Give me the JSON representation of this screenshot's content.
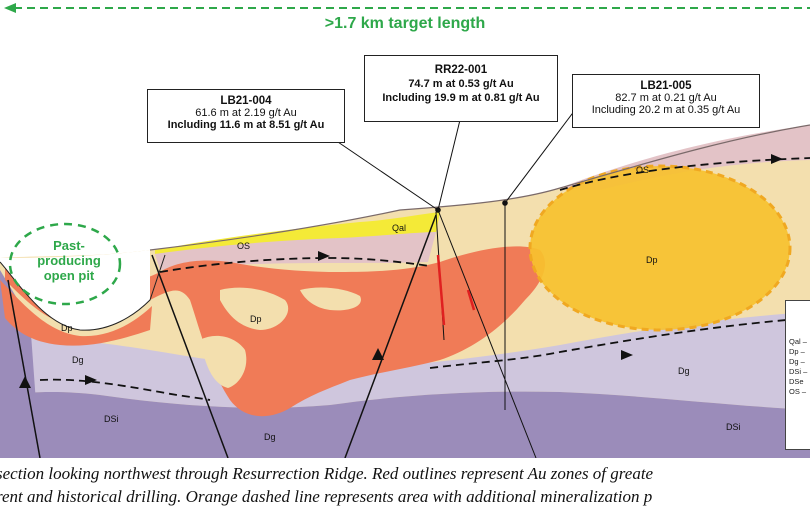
{
  "header": {
    "target_label": ">1.7 km target length"
  },
  "pit": {
    "line1": "Past-",
    "line2": "producing",
    "line3": "open pit"
  },
  "drillholes": [
    {
      "name": "LB21-004",
      "line1": "61.6 m at 2.19 g/t Au",
      "line2": "Including 11.6 m at 8.51 g/t Au"
    },
    {
      "name": "RR22-001",
      "line1": "74.7 m at 0.53 g/t Au",
      "line2": "Including 19.9 m at 0.81 g/t Au"
    },
    {
      "name": "LB21-005",
      "line1": "82.7 m at 0.21 g/t Au",
      "line2": "Including 20.2 m at 0.35 g/t Au"
    }
  ],
  "units": {
    "qal": "Qal",
    "os_left": "OS",
    "os_right": "OS",
    "dp_pit": "Dp",
    "dp_center": "Dp",
    "dp_right": "Dp",
    "dg_left": "Dg",
    "dg_bottom": "Dg",
    "dg_right": "Dg",
    "dsi_left": "DSi",
    "dsi_right": "DSi"
  },
  "legend": {
    "items": [
      "Qal –",
      "Dp –",
      "Dg –",
      "DSi –",
      "DSe",
      "OS –"
    ]
  },
  "caption": {
    "line1": "section looking northwest through Resurrection Ridge. Red outlines represent Au zones of greate",
    "line2": "rent and historical drilling. Orange dashed line represents area with additional mineralization p"
  },
  "colors": {
    "target_green": "#2ea84a",
    "dp_salmon": "#f07b57",
    "dp_pale": "#f3dfae",
    "dg_lilac": "#cfc6dd",
    "dsi_purple": "#9b8cba",
    "os_mauve": "#e3c3c7",
    "qal_yellow": "#f4ea37",
    "target_orange": "#f7c12e"
  }
}
